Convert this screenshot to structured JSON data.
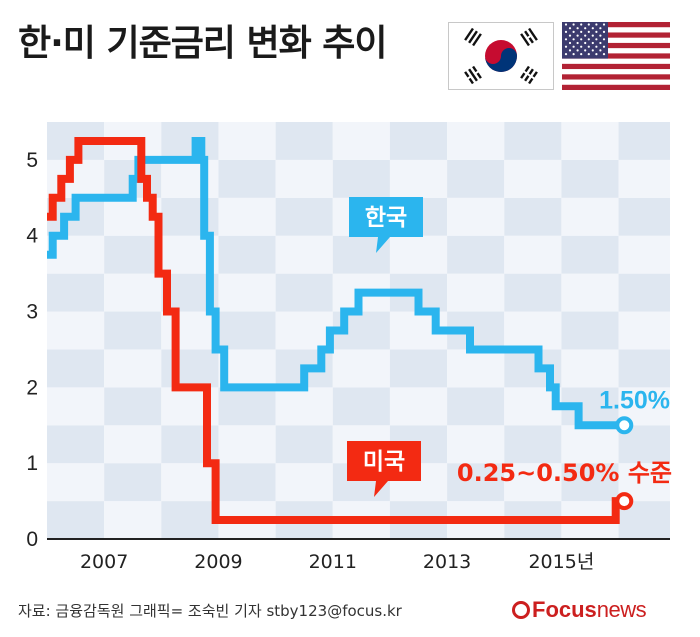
{
  "title": "한·미 기준금리 변화 추이",
  "flags": {
    "left": "south-korea-flag",
    "right": "usa-flag"
  },
  "colors": {
    "korea": "#2bb5ee",
    "usa": "#f32a12",
    "band_dark": "#dfe7f1",
    "band_light": "#f2f5fa",
    "axis": "#222222"
  },
  "footer": {
    "source": "자료: 금융감독원   그래픽= 조숙빈 기자 stby123@focus.kr",
    "logo_bold": "Focus",
    "logo_light": "news"
  },
  "chart_data": {
    "type": "line",
    "title": "한·미 기준금리 변화 추이",
    "xlabel": "",
    "ylabel": "",
    "xlim": [
      2006.0,
      2016.9
    ],
    "ylim": [
      0,
      5.5
    ],
    "x_ticks": [
      2007,
      2009,
      2011,
      2013,
      2015
    ],
    "x_tick_labels": [
      "2007",
      "2009",
      "2011",
      "2013",
      "2015년"
    ],
    "y_ticks": [
      0,
      1,
      2,
      3,
      4,
      5
    ],
    "y_tick_labels": [
      "0",
      "1",
      "2",
      "3",
      "4",
      "5"
    ],
    "grid": false,
    "legend": "callouts",
    "series": [
      {
        "name": "한국",
        "step": true,
        "color": "#2bb5ee",
        "end_label": "1.50%",
        "x": [
          2006.0,
          2006.1,
          2006.3,
          2006.5,
          2006.7,
          2007.5,
          2007.6,
          2008.6,
          2008.7,
          2008.75,
          2008.85,
          2008.95,
          2009.1,
          2010.5,
          2010.8,
          2010.95,
          2011.2,
          2011.45,
          2012.5,
          2012.8,
          2013.4,
          2014.6,
          2014.8,
          2014.9,
          2015.3,
          2015.5,
          2016.1
        ],
        "y": [
          3.75,
          4.0,
          4.25,
          4.5,
          4.5,
          4.75,
          5.0,
          5.25,
          5.0,
          4.0,
          3.0,
          2.5,
          2.0,
          2.25,
          2.5,
          2.75,
          3.0,
          3.25,
          3.0,
          2.75,
          2.5,
          2.25,
          2.0,
          1.75,
          1.5,
          1.5,
          1.5
        ]
      },
      {
        "name": "미국",
        "step": true,
        "color": "#f32a12",
        "end_label": "0.25~0.50% 수준",
        "x": [
          2006.0,
          2006.1,
          2006.25,
          2006.4,
          2006.55,
          2007.65,
          2007.75,
          2007.85,
          2007.95,
          2008.1,
          2008.25,
          2008.8,
          2008.95,
          2015.95,
          2016.1
        ],
        "y": [
          4.25,
          4.5,
          4.75,
          5.0,
          5.25,
          4.75,
          4.5,
          4.25,
          3.5,
          3.0,
          2.0,
          1.0,
          0.25,
          0.5,
          0.5
        ]
      }
    ]
  }
}
